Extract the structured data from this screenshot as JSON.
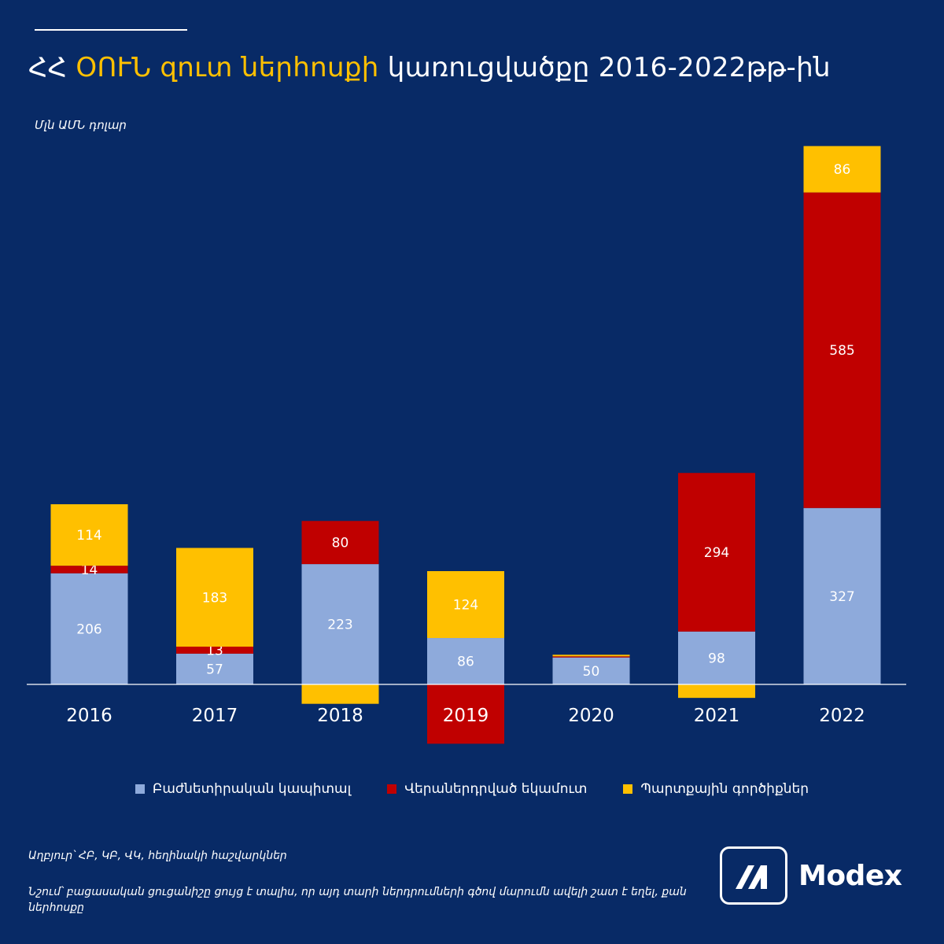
{
  "header": {
    "title_part1": "ՀՀ ",
    "title_highlight": "ՕՈՒՆ զուտ ներհոսքի",
    "title_part2": " կառուցվածքը 2016-2022թթ-ին",
    "unit": "Մլն ԱՄՆ դոլար"
  },
  "colors": {
    "background": "#082a66",
    "equity": "#8eaadb",
    "reinvested": "#c00000",
    "debt": "#ffc000",
    "text": "#ffffff"
  },
  "chart_data": {
    "type": "bar",
    "stacked": true,
    "categories": [
      "2016",
      "2017",
      "2018",
      "2019",
      "2020",
      "2021",
      "2022"
    ],
    "series": [
      {
        "name": "Բաժնետիրական կապիտալ",
        "values": [
          206,
          57,
          223,
          86,
          50,
          98,
          327
        ],
        "labels": [
          "206",
          "57",
          "223",
          "86",
          "50",
          "98",
          "327"
        ]
      },
      {
        "name": "Վերաներդրված եկամուտ",
        "values": [
          14,
          13,
          80,
          -110,
          2,
          294,
          585
        ],
        "labels": [
          "14",
          "13",
          "80",
          "",
          "",
          "294",
          "585"
        ]
      },
      {
        "name": "Պարտքային գործիքներ",
        "values": [
          114,
          183,
          -36,
          124,
          3,
          -25,
          86
        ],
        "labels": [
          "114",
          "183",
          "",
          "124",
          "",
          "",
          "86"
        ]
      }
    ],
    "ylim": [
      -110,
      1000
    ],
    "grid": false,
    "legend_position": "bottom"
  },
  "legend": [
    {
      "label": "Բաժնետիրական կապիտալ",
      "color": "#8eaadb",
      "icon": "square-swatch"
    },
    {
      "label": "Վերաներդրված եկամուտ",
      "color": "#c00000",
      "icon": "square-swatch"
    },
    {
      "label": "Պարտքային գործիքներ",
      "color": "#ffc000",
      "icon": "square-swatch"
    }
  ],
  "footer": {
    "source": "Աղբյուր՝ ՀԲ, ԿԲ, ՎԿ, հեղինակի հաշվարկներ",
    "note": "Նշում՝ բացասական ցուցանիշը ցույց է տալիս, որ այդ տարի ներդրումների գծով մարումն ավելի շատ է եղել, քան ներհոսքը"
  },
  "brand": {
    "name": "Modex",
    "icon": "modex-logo-icon"
  }
}
